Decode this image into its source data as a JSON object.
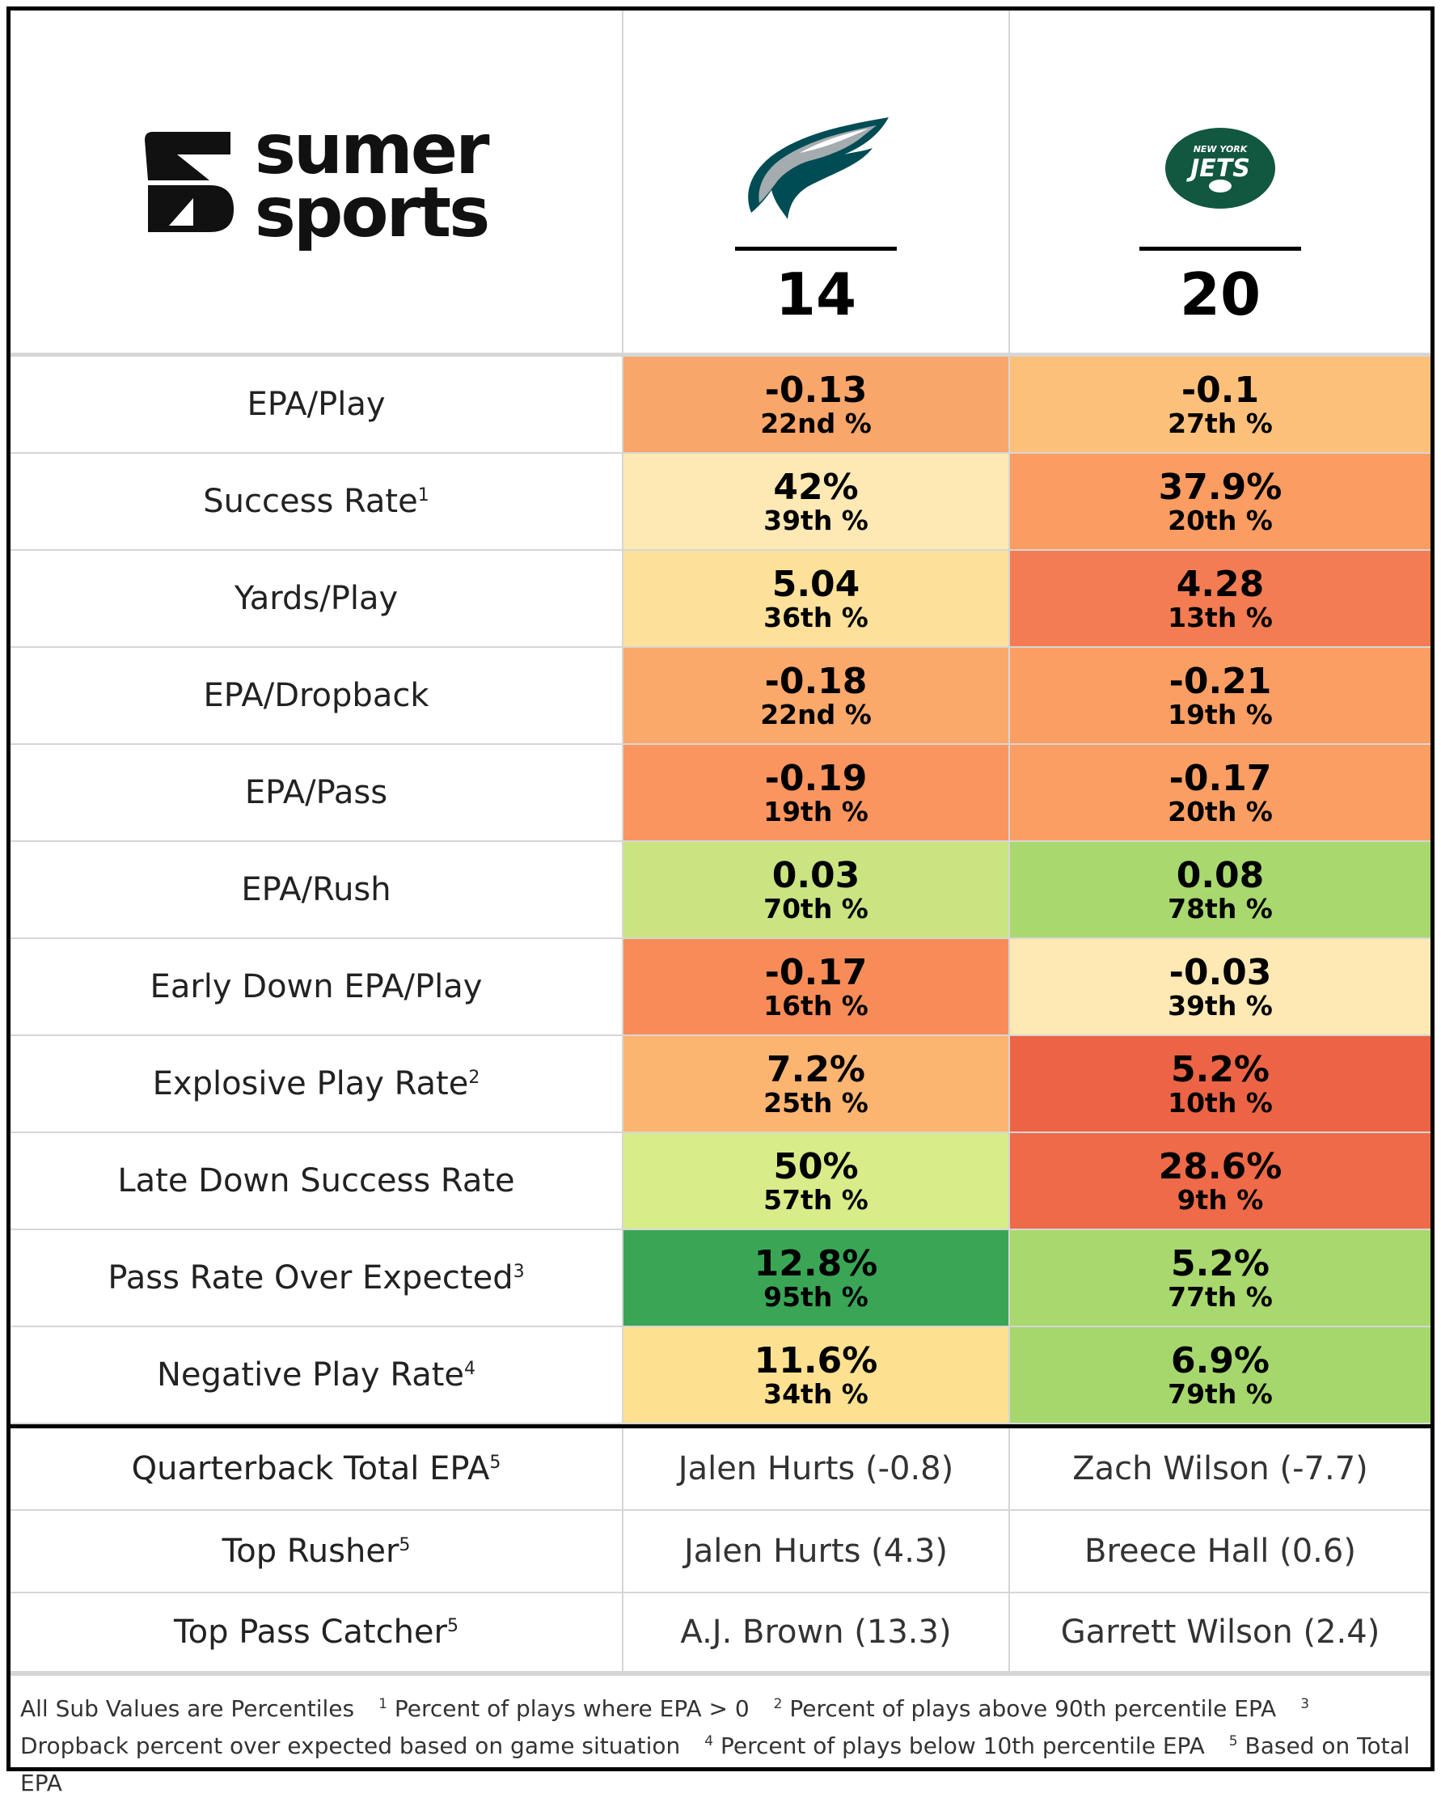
{
  "brand": {
    "line1": "sumer",
    "line2": "sports"
  },
  "teams": [
    {
      "name": "Eagles",
      "icon": "eagles-logo",
      "score": "14"
    },
    {
      "name": "Jets",
      "icon": "jets-logo",
      "logo_text_top": "NEW YORK",
      "logo_text": "JETS",
      "score": "20"
    }
  ],
  "metrics": [
    {
      "label": "EPA/Play",
      "sup": "",
      "cells": [
        {
          "value": "-0.13",
          "pct": "22nd %",
          "color": "#f9a66a"
        },
        {
          "value": "-0.1",
          "pct": "27th %",
          "color": "#fcc07a"
        }
      ]
    },
    {
      "label": "Success Rate",
      "sup": "1",
      "cells": [
        {
          "value": "42%",
          "pct": "39th %",
          "color": "#fee8b4"
        },
        {
          "value": "37.9%",
          "pct": "20th %",
          "color": "#fb9c62"
        }
      ]
    },
    {
      "label": "Yards/Play",
      "sup": "",
      "cells": [
        {
          "value": "5.04",
          "pct": "36th %",
          "color": "#fde19a"
        },
        {
          "value": "4.28",
          "pct": "13th %",
          "color": "#f47c52"
        }
      ]
    },
    {
      "label": "EPA/Dropback",
      "sup": "",
      "cells": [
        {
          "value": "-0.18",
          "pct": "22nd %",
          "color": "#fba86b"
        },
        {
          "value": "-0.21",
          "pct": "19th %",
          "color": "#fb9e63"
        }
      ]
    },
    {
      "label": "EPA/Pass",
      "sup": "",
      "cells": [
        {
          "value": "-0.19",
          "pct": "19th %",
          "color": "#fa9560"
        },
        {
          "value": "-0.17",
          "pct": "20th %",
          "color": "#fb9e63"
        }
      ]
    },
    {
      "label": "EPA/Rush",
      "sup": "",
      "cells": [
        {
          "value": "0.03",
          "pct": "70th %",
          "color": "#c9e480"
        },
        {
          "value": "0.08",
          "pct": "78th %",
          "color": "#a8d86e"
        }
      ]
    },
    {
      "label": "Early Down EPA/Play",
      "sup": "",
      "cells": [
        {
          "value": "-0.17",
          "pct": "16th %",
          "color": "#f88c58"
        },
        {
          "value": "-0.03",
          "pct": "39th %",
          "color": "#fee8b4"
        }
      ]
    },
    {
      "label": "Explosive Play Rate",
      "sup": "2",
      "cells": [
        {
          "value": "7.2%",
          "pct": "25th %",
          "color": "#fcb471"
        },
        {
          "value": "5.2%",
          "pct": "10th %",
          "color": "#ec6445"
        }
      ]
    },
    {
      "label": "Late Down Success Rate",
      "sup": "",
      "cells": [
        {
          "value": "50%",
          "pct": "57th %",
          "color": "#d8ec8a"
        },
        {
          "value": "28.6%",
          "pct": "9th %",
          "color": "#ef6a48"
        }
      ]
    },
    {
      "label": "Pass Rate Over Expected",
      "sup": "3",
      "cells": [
        {
          "value": "12.8%",
          "pct": "95th %",
          "color": "#3aa655"
        },
        {
          "value": "5.2%",
          "pct": "77th %",
          "color": "#a8d86e"
        }
      ]
    },
    {
      "label": "Negative Play Rate",
      "sup": "4",
      "cells": [
        {
          "value": "11.6%",
          "pct": "34th %",
          "color": "#fde191"
        },
        {
          "value": "6.9%",
          "pct": "79th %",
          "color": "#a5d76d"
        }
      ]
    }
  ],
  "players": [
    {
      "label": "Quarterback Total EPA",
      "sup": "5",
      "cells": [
        "Jalen Hurts (-0.8)",
        "Zach Wilson (-7.7)"
      ]
    },
    {
      "label": "Top Rusher",
      "sup": "5",
      "cells": [
        "Jalen Hurts (4.3)",
        "Breece Hall (0.6)"
      ]
    },
    {
      "label": "Top Pass Catcher",
      "sup": "5",
      "cells": [
        "A.J. Brown (13.3)",
        "Garrett Wilson (2.4)"
      ]
    }
  ],
  "footnotes": {
    "intro": "All Sub Values are Percentiles",
    "notes": [
      {
        "n": "1",
        "text": "Percent of plays where EPA > 0"
      },
      {
        "n": "2",
        "text": "Percent of plays above 90th percentile EPA"
      },
      {
        "n": "3",
        "text": "Dropback percent over expected based on game situation"
      },
      {
        "n": "4",
        "text": "Percent of plays below 10th percentile EPA"
      },
      {
        "n": "5",
        "text": "Based on Total EPA"
      }
    ]
  }
}
